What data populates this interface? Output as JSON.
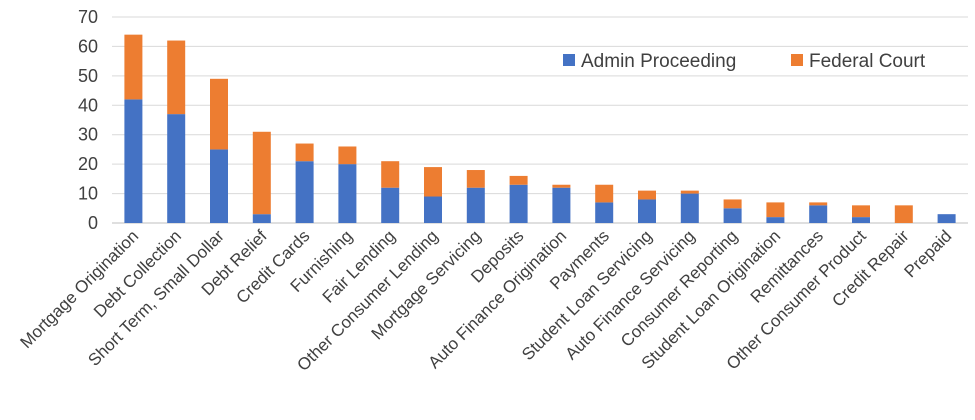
{
  "chart_data": {
    "type": "bar",
    "stacked": true,
    "categories": [
      "Mortgage Origination",
      "Debt Collection",
      "Short Term, Small Dollar",
      "Debt Relief",
      "Credit Cards",
      "Furnishing",
      "Fair Lending",
      "Other Consumer Lending",
      "Mortgage Servicing",
      "Deposits",
      "Auto Finance Origination",
      "Payments",
      "Student Loan Servicing",
      "Auto Finance Servicing",
      "Consumer Reporting",
      "Student Loan Origination",
      "Remittances",
      "Other Consumer Product",
      "Credit Repair",
      "Prepaid"
    ],
    "series": [
      {
        "name": "Admin Proceeding",
        "color": "#4472C4",
        "values": [
          42,
          37,
          25,
          3,
          21,
          20,
          12,
          9,
          12,
          13,
          12,
          7,
          8,
          10,
          5,
          2,
          6,
          2,
          0,
          3
        ]
      },
      {
        "name": "Federal Court",
        "color": "#ED7D31",
        "values": [
          22,
          25,
          24,
          28,
          6,
          6,
          9,
          10,
          6,
          3,
          1,
          6,
          3,
          1,
          3,
          5,
          1,
          4,
          6,
          0
        ]
      }
    ],
    "yticks": [
      0,
      10,
      20,
      30,
      40,
      50,
      60,
      70
    ],
    "ylim": [
      0,
      70
    ],
    "grid": true,
    "legend_position": "top-right",
    "title": "",
    "xlabel": "",
    "ylabel": ""
  }
}
